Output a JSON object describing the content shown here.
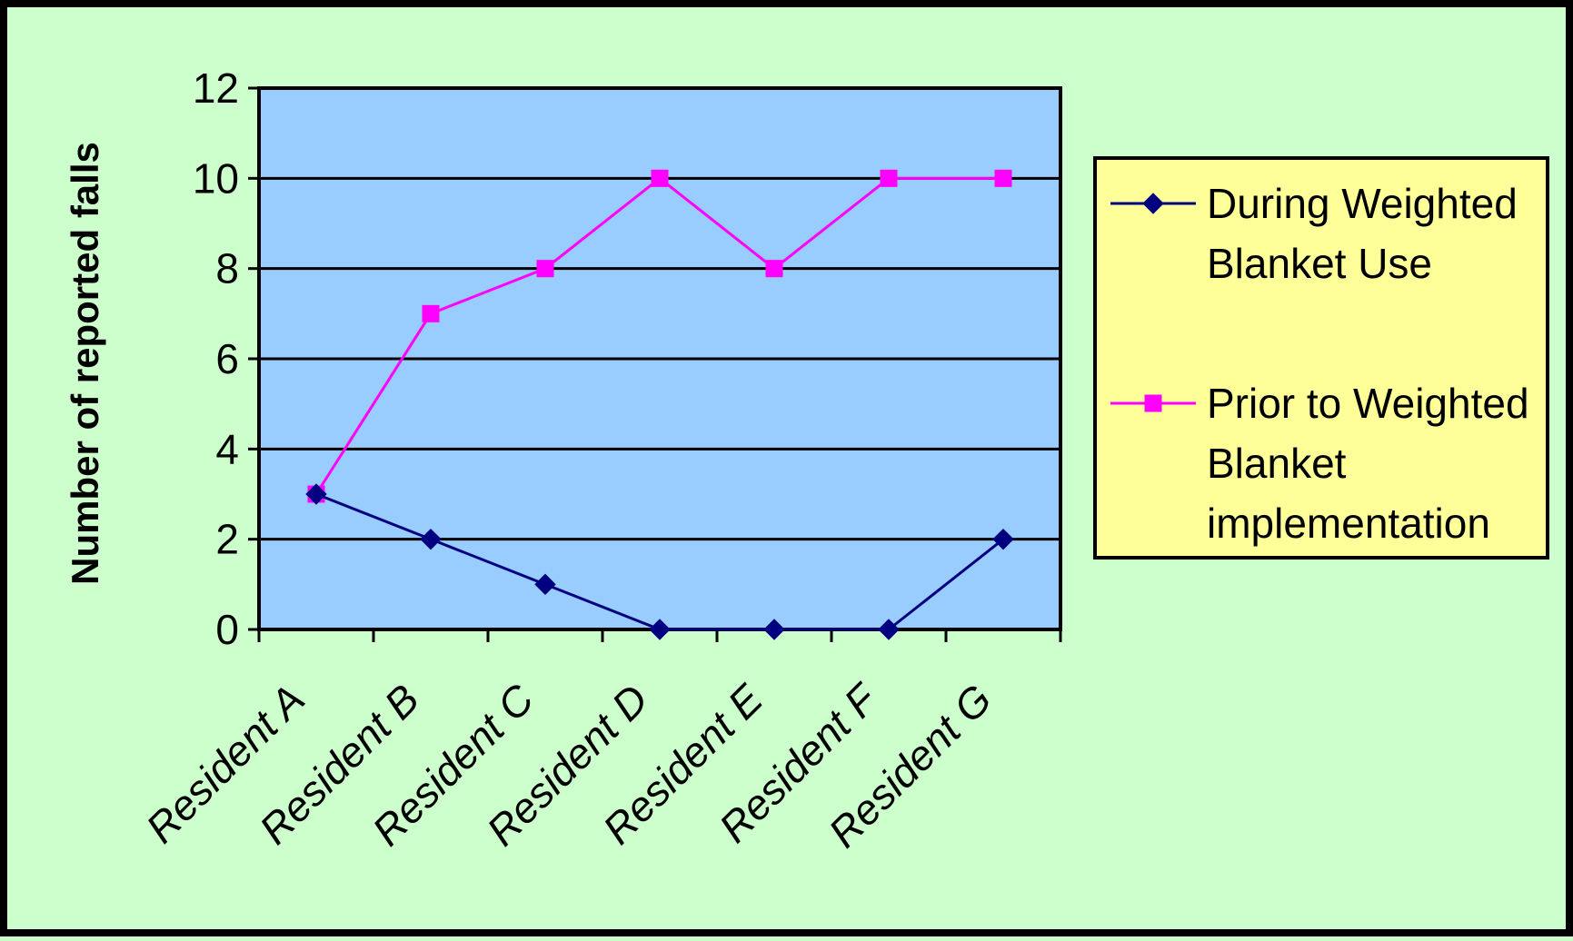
{
  "chart_data": {
    "type": "line",
    "title": "",
    "xlabel": "",
    "ylabel": "Number of reported falls",
    "categories": [
      "Resident A",
      "Resident B",
      "Resident C",
      "Resident D",
      "Resident E",
      "Resident F",
      "Resident G"
    ],
    "ylim": [
      0,
      12
    ],
    "yticks": [
      "0",
      "2",
      "4",
      "6",
      "8",
      "10",
      "12"
    ],
    "grid": true,
    "legend_position": "right",
    "series": [
      {
        "name": [
          "During Weighted",
          "Blanket Use"
        ],
        "values": [
          3,
          2,
          1,
          0,
          0,
          0,
          2
        ],
        "color": "#000080",
        "marker": "diamond"
      },
      {
        "name": [
          "Prior to  Weighted",
          "Blanket",
          "implementation"
        ],
        "values": [
          3,
          7,
          8,
          10,
          8,
          10,
          10
        ],
        "color": "#ff00ff",
        "marker": "square"
      }
    ],
    "colors": {
      "background": "#ccffcc",
      "plot_area": "#99ccff",
      "legend_background": "#ffff99"
    }
  }
}
